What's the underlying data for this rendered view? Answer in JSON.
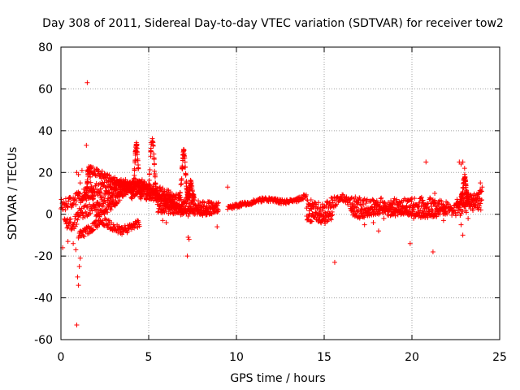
{
  "chart_data": {
    "type": "scatter",
    "title": "Day 308 of 2011, Sidereal Day-to-day VTEC variation (SDTVAR) for receiver tow2",
    "xlabel": "GPS time / hours",
    "ylabel": "SDTVAR / TECUs",
    "xlim": [
      0,
      25
    ],
    "ylim": [
      -60,
      80
    ],
    "xticks": [
      0,
      5,
      10,
      15,
      20,
      25
    ],
    "yticks": [
      -60,
      -40,
      -20,
      0,
      20,
      40,
      60,
      80
    ],
    "xtick_labels": [
      "0",
      "5",
      "10",
      "15",
      "20",
      "25"
    ],
    "ytick_labels": [
      "-60",
      "-40",
      "-20",
      "0",
      "20",
      "40",
      "60",
      "80"
    ],
    "grid": true,
    "marker": "+",
    "series": [
      {
        "name": "SDTVAR",
        "color": "#ff0000",
        "bands": [
          {
            "x": [
              0.0,
              0.3,
              0.6,
              1.0,
              1.5,
              2.0,
              2.5,
              3.0,
              3.5,
              4.0,
              4.5,
              5.0,
              5.5,
              6.0,
              6.5,
              7.0,
              7.5,
              8.0,
              8.5,
              9.0
            ],
            "y": [
              4,
              5,
              6,
              8,
              10,
              12,
              13,
              14,
              13,
              12,
              11,
              10,
              9,
              8,
              7,
              6,
              5,
              4,
              3,
              3
            ],
            "w": 3
          },
          {
            "x": [
              0.2,
              0.5,
              0.8,
              1.0,
              1.5,
              2.0,
              2.5,
              3.0,
              3.5,
              4.0,
              4.5,
              5.0,
              5.5,
              6.0,
              6.5
            ],
            "y": [
              -3,
              -5,
              -4,
              0,
              2,
              5,
              8,
              10,
              12,
              13,
              13,
              12,
              11,
              9,
              7
            ],
            "w": 3
          },
          {
            "x": [
              1.0,
              1.5,
              2.0,
              2.5,
              3.0,
              3.5,
              4.0,
              4.5
            ],
            "y": [
              -10,
              -8,
              -5,
              -4,
              -6,
              -8,
              -6,
              -4
            ],
            "w": 2
          },
          {
            "x": [
              1.5,
              1.8,
              2.0,
              2.5,
              3.0,
              3.5,
              4.0
            ],
            "y": [
              21,
              21,
              20,
              18,
              16,
              15,
              14
            ],
            "w": 2
          },
          {
            "x": [
              2.0,
              2.5,
              3.0,
              3.5,
              4.0,
              4.5,
              5.0,
              5.5,
              6.0,
              6.5,
              7.0
            ],
            "y": [
              0,
              2,
              5,
              10,
              14,
              16,
              12,
              8,
              6,
              4,
              3
            ],
            "w": 2
          },
          {
            "x": [
              5.5,
              6.0,
              6.5,
              7.0,
              7.5,
              8.0,
              8.5,
              9.0
            ],
            "y": [
              3,
              2,
              2,
              1,
              1,
              1,
              2,
              3
            ],
            "w": 2
          },
          {
            "x": [
              9.5,
              10.0,
              10.5,
              11.0,
              11.5,
              12.0,
              12.5,
              13.0,
              13.5,
              14.0
            ],
            "y": [
              3,
              4,
              5,
              6,
              7,
              7,
              6,
              6,
              7,
              9
            ],
            "w": 1
          },
          {
            "x": [
              14.0,
              14.5,
              15.0,
              15.5,
              16.0,
              16.5,
              17.0,
              17.5,
              18.0,
              18.5,
              19.0,
              19.5,
              20.0,
              20.5,
              21.0,
              21.5,
              22.0,
              22.5,
              23.0,
              23.5,
              24.0
            ],
            "y": [
              5,
              3,
              2,
              6,
              8,
              6,
              5,
              4,
              5,
              5,
              5,
              5,
              5,
              6,
              5,
              4,
              3,
              2,
              3,
              4,
              5
            ],
            "w": 3
          },
          {
            "x": [
              14.0,
              14.5,
              15.0,
              15.5
            ],
            "y": [
              -2,
              -1,
              -3,
              0
            ],
            "w": 2
          },
          {
            "x": [
              16.5,
              17.0,
              17.5,
              18.0,
              18.5,
              19.0,
              19.5,
              20.0,
              20.5,
              21.0,
              21.5,
              22.0
            ],
            "y": [
              1,
              0,
              1,
              2,
              1,
              1,
              2,
              1,
              0,
              0,
              1,
              2
            ],
            "w": 2
          },
          {
            "x": [
              22.5,
              23.0,
              23.5,
              24.0
            ],
            "y": [
              5,
              6,
              8,
              10
            ],
            "w": 2
          }
        ],
        "peaks": [
          {
            "x": 4.3,
            "y": 33,
            "w": 0.3
          },
          {
            "x": 5.2,
            "y": 36,
            "w": 0.35
          },
          {
            "x": 7.0,
            "y": 30,
            "w": 0.3
          },
          {
            "x": 7.4,
            "y": 15,
            "w": 0.2
          },
          {
            "x": 1.6,
            "y": 22,
            "w": 0.25
          },
          {
            "x": 23.0,
            "y": 18,
            "w": 0.2
          }
        ],
        "outliers": [
          [
            1.5,
            63
          ],
          [
            1.45,
            33
          ],
          [
            0.9,
            20
          ],
          [
            1.0,
            19
          ],
          [
            1.2,
            21
          ],
          [
            1.1,
            15
          ],
          [
            1.3,
            12
          ],
          [
            0.9,
            -53
          ],
          [
            1.0,
            -34
          ],
          [
            0.95,
            -30
          ],
          [
            0.85,
            -17
          ],
          [
            1.05,
            -25
          ],
          [
            1.1,
            -21
          ],
          [
            0.7,
            -14
          ],
          [
            0.4,
            -13
          ],
          [
            0.1,
            -16
          ],
          [
            7.2,
            -20
          ],
          [
            7.3,
            -12
          ],
          [
            7.25,
            -11
          ],
          [
            6.0,
            -4
          ],
          [
            5.8,
            -3
          ],
          [
            8.9,
            -6
          ],
          [
            9.5,
            13
          ],
          [
            15.6,
            -23
          ],
          [
            17.3,
            -5
          ],
          [
            17.8,
            -4
          ],
          [
            18.1,
            -8
          ],
          [
            18.4,
            -2
          ],
          [
            19.9,
            -14
          ],
          [
            20.8,
            25
          ],
          [
            21.2,
            -18
          ],
          [
            21.3,
            10
          ],
          [
            22.7,
            25
          ],
          [
            22.9,
            25
          ],
          [
            22.8,
            24
          ],
          [
            23.0,
            22
          ],
          [
            22.9,
            -10
          ],
          [
            22.8,
            -5
          ],
          [
            23.2,
            -2
          ],
          [
            21.8,
            -3
          ],
          [
            20.1,
            -2
          ],
          [
            23.9,
            15
          ],
          [
            24.0,
            13
          ]
        ]
      }
    ]
  }
}
